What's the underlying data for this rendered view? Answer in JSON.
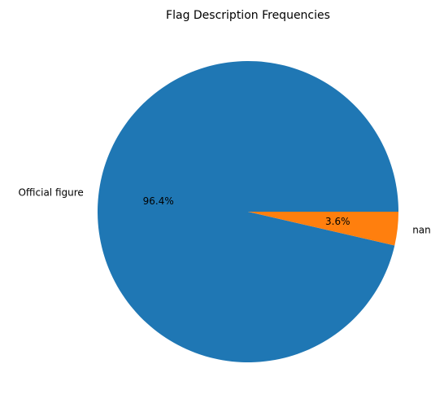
{
  "chart_data": {
    "type": "pie",
    "title": "Flag Description Frequencies",
    "slices": [
      {
        "label": "Official figure",
        "value": 96.4,
        "pct_label": "96.4%",
        "color": "#1f77b4"
      },
      {
        "label": "nan",
        "value": 3.6,
        "pct_label": "3.6%",
        "color": "#ff7f0e"
      }
    ],
    "start_angle_deg": 0,
    "direction": "counterclockwise"
  }
}
